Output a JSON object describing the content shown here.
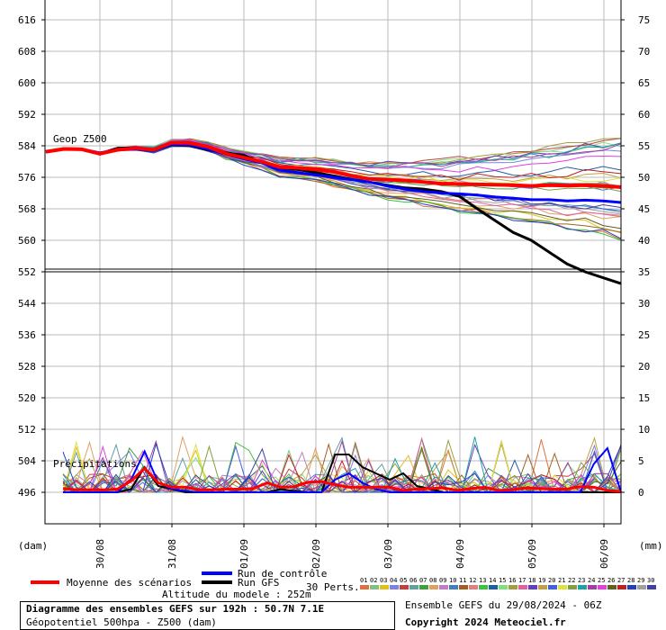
{
  "chart_data": {
    "type": "line",
    "title": "Diagramme des ensembles GEFS sur 192h : 50.7N 7.1E",
    "subtitle": "Géopotentiel 500hpa - Z500 (dam)",
    "left_axis": {
      "label": "(dam)",
      "ticks": [
        616,
        608,
        600,
        592,
        584,
        576,
        568,
        560,
        552,
        544,
        536,
        528,
        520,
        512,
        504,
        496
      ]
    },
    "right_axis": {
      "label": "(mm)",
      "ticks": [
        75,
        70,
        65,
        60,
        55,
        50,
        45,
        40,
        35,
        30,
        25,
        20,
        15,
        10,
        5,
        0
      ]
    },
    "x_ticks": [
      "30/08",
      "31/08",
      "01/09",
      "02/09",
      "03/09",
      "04/09",
      "05/09",
      "06/09"
    ],
    "upper_panel_label": "Geop Z500",
    "lower_panel_label": "Précipitations",
    "x_hours": [
      0,
      6,
      12,
      18,
      24,
      30,
      36,
      42,
      48,
      54,
      60,
      66,
      72,
      78,
      84,
      90,
      96,
      102,
      108,
      114,
      120,
      126,
      132,
      138,
      144,
      150,
      156,
      162,
      168,
      174,
      180,
      186,
      192
    ],
    "z500_series": [
      {
        "name": "Moyenne des scénarios",
        "color": "#ff0000",
        "values": [
          582.5,
          583.2,
          583.1,
          582.0,
          583.0,
          583.4,
          583.0,
          584.8,
          584.7,
          583.8,
          582.0,
          581.0,
          580.0,
          578.6,
          578.4,
          578.0,
          577.4,
          576.4,
          575.6,
          575.4,
          575.2,
          574.8,
          574.4,
          574.3,
          574.2,
          574.1,
          574.0,
          573.8,
          574.0,
          573.9,
          574.0,
          573.8,
          573.5
        ]
      },
      {
        "name": "Run de contrôle",
        "color": "#0000ff",
        "values": [
          582.5,
          583.2,
          583.1,
          582.2,
          583.0,
          583.1,
          582.8,
          584.4,
          584.2,
          583.2,
          581.8,
          580.7,
          579.7,
          577.8,
          577.2,
          576.6,
          576.0,
          575.4,
          574.8,
          573.8,
          573.0,
          572.4,
          572.0,
          571.8,
          571.5,
          571.0,
          570.7,
          570.3,
          570.3,
          570.0,
          570.2,
          570.0,
          569.6
        ]
      },
      {
        "name": "Run GFS",
        "color": "#000000",
        "values": [
          582.5,
          583.3,
          583.2,
          582.0,
          583.4,
          583.5,
          582.9,
          584.3,
          584.0,
          583.0,
          582.2,
          581.6,
          579.8,
          578.4,
          578.0,
          577.2,
          576.4,
          575.5,
          574.8,
          574.0,
          573.3,
          573.0,
          572.4,
          571.2,
          568.0,
          565.0,
          562.0,
          560.0,
          557.0,
          554.0,
          552.0,
          550.5,
          549.0
        ]
      }
    ],
    "precip_series": [
      {
        "name": "Moyenne des scénarios",
        "color": "#ff0000",
        "values": [
          0.6,
          0.4,
          0.4,
          0.4,
          0.5,
          1.8,
          3.8,
          1.5,
          0.8,
          0.8,
          0.4,
          0.4,
          0.5,
          0.5,
          0.6,
          1.5,
          0.8,
          0.9,
          1.6,
          1.7,
          1.2,
          0.8,
          0.8,
          0.8,
          0.8,
          0.3,
          0.5,
          0.6,
          0.7,
          0.3,
          0.6,
          0.8,
          0.3,
          0.4,
          0.7,
          0.6,
          0.5,
          0.5,
          0.9,
          0.8,
          0.3,
          0.1
        ]
      },
      {
        "name": "Run de contrôle",
        "color": "#0000ff",
        "values": [
          0.0,
          0.0,
          0.0,
          0.0,
          0.0,
          2.0,
          6.5,
          1.5,
          0.5,
          0.2,
          0.0,
          0.0,
          0.0,
          0.0,
          0.0,
          0.0,
          0.0,
          0.0,
          0.0,
          0.0,
          2.0,
          3.0,
          1.5,
          0.5,
          0.0,
          0.0,
          0.0,
          0.0,
          0.0,
          0.0,
          0.0,
          0.0,
          0.0,
          0.0,
          0.0,
          0.0,
          0.0,
          0.0,
          0.0,
          4.5,
          7.0,
          0.0
        ]
      },
      {
        "name": "Run GFS",
        "color": "#000000",
        "values": [
          0.0,
          0.0,
          0.0,
          0.0,
          0.0,
          0.5,
          4.0,
          1.0,
          0.5,
          0.0,
          0.0,
          0.0,
          0.0,
          0.0,
          0.0,
          0.0,
          0.5,
          0.2,
          0.0,
          0.0,
          6.0,
          6.0,
          4.0,
          3.0,
          2.0,
          3.0,
          1.0,
          0.5,
          0.0,
          0.0,
          0.0,
          0.0,
          0.0,
          0.0,
          0.0,
          0.0,
          0.0,
          0.0,
          0.0,
          0.0,
          0.0,
          0.0
        ]
      }
    ],
    "perturbation_colors": [
      "#e07040",
      "#80c080",
      "#e0c020",
      "#8080e0",
      "#c04040",
      "#60a0a0",
      "#40a040",
      "#e0a060",
      "#c080c0",
      "#4080c0",
      "#a06020",
      "#e08080",
      "#40c040",
      "#2060a0",
      "#80e080",
      "#a0a040",
      "#e060a0",
      "#6040c0",
      "#c0a040",
      "#4060e0",
      "#e0e040",
      "#80a040",
      "#20a0a0",
      "#a040a0",
      "#e040e0",
      "#606020",
      "#c02020",
      "#2040c0",
      "#a0a0a0",
      "#4040a0"
    ],
    "pert_codes": [
      "01",
      "02",
      "03",
      "04",
      "05",
      "06",
      "07",
      "08",
      "09",
      "10",
      "11",
      "12",
      "13",
      "14",
      "15",
      "16",
      "17",
      "18",
      "19",
      "20",
      "21",
      "22",
      "23",
      "24",
      "25",
      "26",
      "27",
      "28",
      "29",
      "30"
    ]
  },
  "legend": {
    "mean": "Moyenne des scénarios",
    "control": "Run de contrôle",
    "gfs": "Run GFS",
    "perts": "30 Perts.",
    "altitude": "Altitude du modele : 252m"
  },
  "footer": {
    "title": "Diagramme des ensembles GEFS sur 192h : 50.7N 7.1E",
    "subtitle": "Géopotentiel 500hpa - Z500 (dam)",
    "run": "Ensemble GEFS du 29/08/2024 - 06Z",
    "copyright": "Copyright 2024 Meteociel.fr"
  }
}
